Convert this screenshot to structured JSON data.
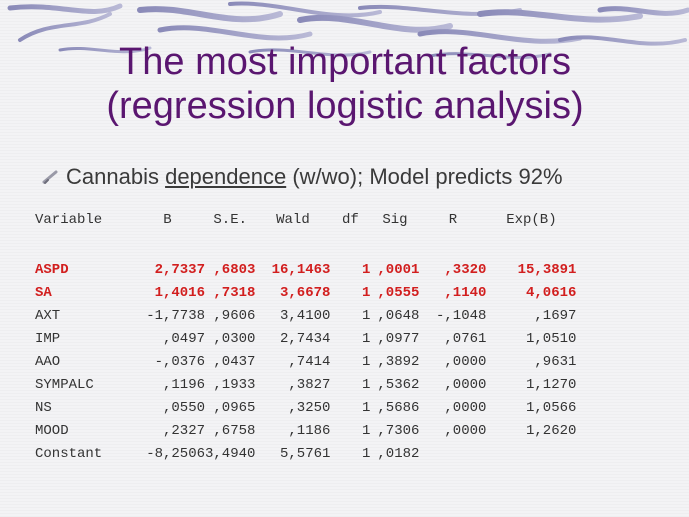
{
  "title": {
    "line1": "The most important factors",
    "line2": "(regression logistic analysis)"
  },
  "bullet": {
    "pre": "Cannabis ",
    "underlined": "dependence",
    "post": " (w/wo); Model predicts 92%"
  },
  "colors": {
    "title": "#5a1670",
    "highlight": "#d21e1e",
    "body_text": "#333333"
  },
  "table": {
    "headers": [
      "Variable",
      "B",
      "S.E.",
      "Wald",
      "df",
      "Sig",
      "R",
      "Exp(B)"
    ],
    "rows": [
      {
        "highlight": true,
        "cells": [
          "ASPD",
          "2,7337",
          ",6803",
          "16,1463",
          "1",
          ",0001",
          ",3320",
          "15,3891"
        ]
      },
      {
        "highlight": true,
        "cells": [
          "SA",
          "1,4016",
          ",7318",
          "3,6678",
          "1",
          ",0555",
          ",1140",
          "4,0616"
        ]
      },
      {
        "highlight": false,
        "cells": [
          "AXT",
          "-1,7738",
          ",9606",
          "3,4100",
          "1",
          ",0648",
          "-,1048",
          ",1697"
        ]
      },
      {
        "highlight": false,
        "cells": [
          "IMP",
          ",0497",
          ",0300",
          "2,7434",
          "1",
          ",0977",
          ",0761",
          "1,0510"
        ]
      },
      {
        "highlight": false,
        "cells": [
          "AAO",
          "-,0376",
          ",0437",
          ",7414",
          "1",
          ",3892",
          ",0000",
          ",9631"
        ]
      },
      {
        "highlight": false,
        "cells": [
          "SYMPALC",
          ",1196",
          ",1933",
          ",3827",
          "1",
          ",5362",
          ",0000",
          "1,1270"
        ]
      },
      {
        "highlight": false,
        "cells": [
          "NS",
          ",0550",
          ",0965",
          ",3250",
          "1",
          ",5686",
          ",0000",
          "1,0566"
        ]
      },
      {
        "highlight": false,
        "cells": [
          "MOOD",
          ",2327",
          ",6758",
          ",1186",
          "1",
          ",7306",
          ",0000",
          "1,2620"
        ]
      },
      {
        "highlight": false,
        "cells": [
          "Constant",
          "-8,2506",
          "3,4940",
          "5,5761",
          "1",
          ",0182",
          "",
          ""
        ]
      }
    ]
  }
}
